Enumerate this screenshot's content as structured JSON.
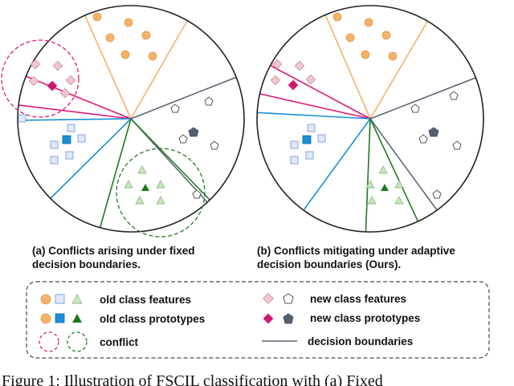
{
  "panel_a": {
    "caption_line1": "(a) Conflicts arising under fixed",
    "caption_line2": "decision boundaries."
  },
  "panel_b": {
    "caption_line1": "(b)  Conflicts mitigating under adaptive",
    "caption_line2": "decision boundaries (Ours)."
  },
  "legend": {
    "old_features": "old class features",
    "old_prototypes": "old class prototypes",
    "conflict": "conflict",
    "new_features": "new class features",
    "new_prototypes": "new class prototypes",
    "decision_boundaries": "decision boundaries"
  },
  "figure_caption": "Figure 1: Illustration of FSCIL classification with (a) Fixed",
  "colors": {
    "orange": "#f5b26b",
    "blue": "#1a8fd6",
    "green": "#1e7a1e",
    "pink": "#e0197a",
    "gray": "#5b6575"
  }
}
